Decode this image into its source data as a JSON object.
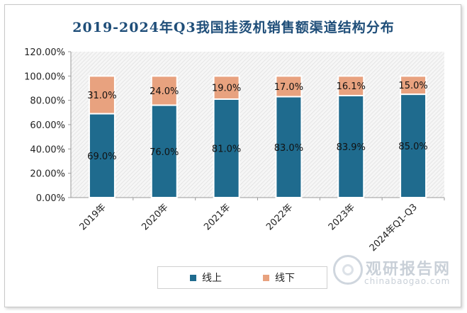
{
  "chart_data": {
    "type": "bar",
    "stacked": true,
    "title": "2019-2024年Q3我国挂烫机销售额渠道结构分布",
    "categories": [
      "2019年",
      "2020年",
      "2021年",
      "2022年",
      "2023年",
      "2024年Q1-Q3"
    ],
    "series": [
      {
        "name": "线上",
        "color": "#1f6b8e",
        "values": [
          69.0,
          76.0,
          81.0,
          83.0,
          83.9,
          85.0
        ],
        "labels": [
          "69.0%",
          "76.0%",
          "81.0%",
          "83.0%",
          "83.9%",
          "85.0%"
        ]
      },
      {
        "name": "线下",
        "color": "#e8a27f",
        "values": [
          31.0,
          24.0,
          19.0,
          17.0,
          16.1,
          15.0
        ],
        "labels": [
          "31.0%",
          "24.0%",
          "19.0%",
          "17.0%",
          "16.1%",
          "15.0%"
        ]
      }
    ],
    "yticks": [
      "0.00%",
      "20.00%",
      "40.00%",
      "60.00%",
      "80.00%",
      "100.00%",
      "120.00%"
    ],
    "ylim": [
      0,
      120
    ],
    "ystep": 20,
    "legend_position": "bottom",
    "plot_background": "hatched",
    "grid": false
  },
  "watermark": {
    "main": "观研报告网",
    "sub": "chinabaogao.com"
  }
}
